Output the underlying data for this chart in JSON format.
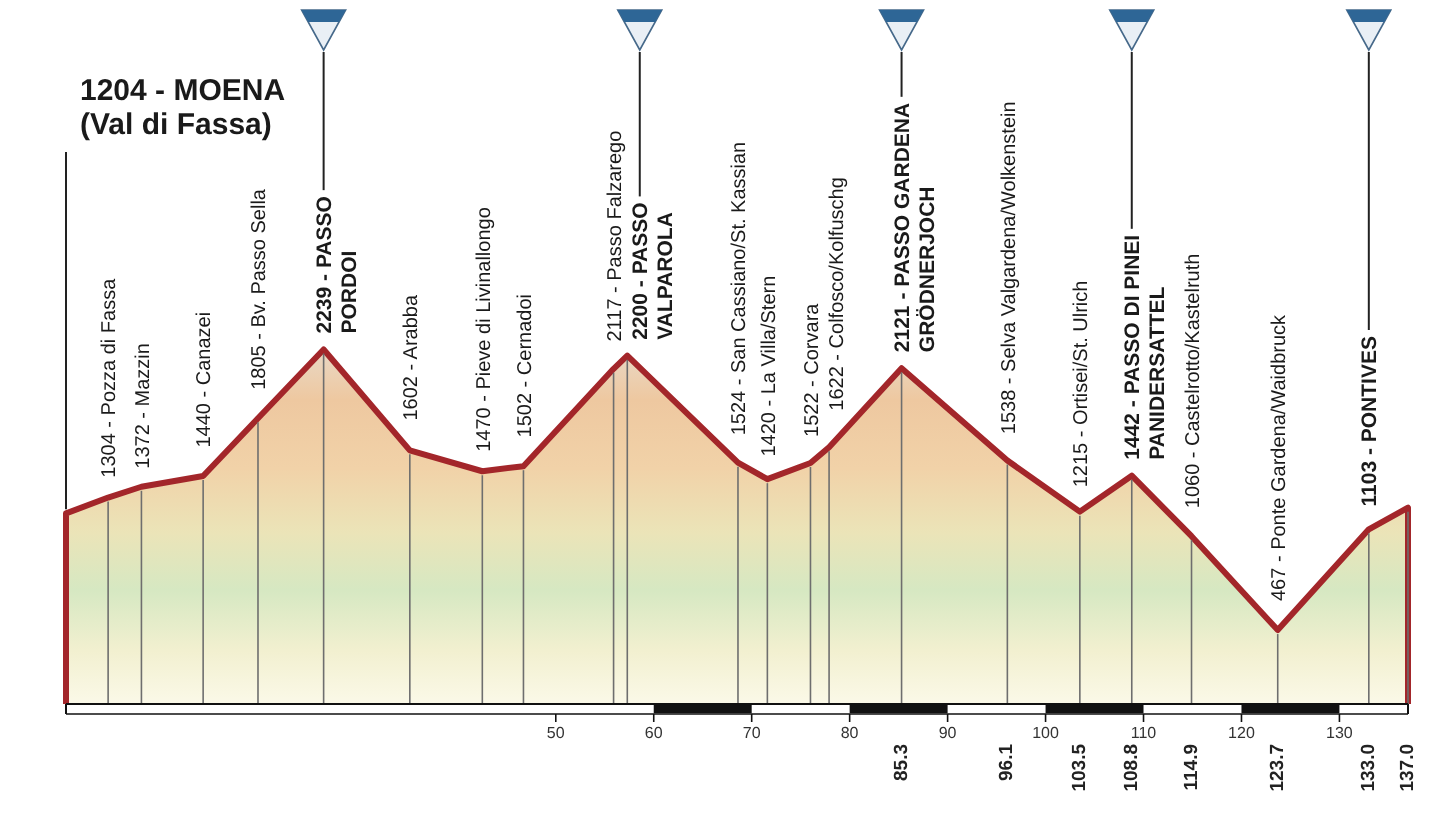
{
  "chart_data": {
    "type": "area",
    "color": "#a3262a",
    "x": [
      0,
      4.3,
      7.7,
      14.0,
      19.6,
      26.3,
      35.1,
      42.5,
      46.7,
      55.9,
      57.3,
      68.6,
      71.6,
      76.0,
      77.9,
      85.3,
      96.1,
      103.5,
      108.8,
      114.9,
      123.7,
      133.0,
      137.0
    ],
    "values": [
      1204,
      1304,
      1372,
      1440,
      1805,
      2239,
      1602,
      1470,
      1502,
      2117,
      2200,
      1524,
      1420,
      1522,
      1622,
      2121,
      1538,
      1215,
      1442,
      1060,
      467,
      1103,
      1240
    ],
    "value_labels": [
      "1204 - MOENA\n(Val di Fassa)",
      "1304 - Pozza di Fassa",
      "1372 - Mazzin",
      "1440 - Canazei",
      "1805 - Bv. Passo Sella",
      "2239 - PASSO\nPORDOI",
      "1602 - Arabba",
      "1470 - Pieve di Livinallongo",
      "1502 - Cernadoi",
      "2117 - Passo Falzarego",
      "2200 - PASSO\nVALPAROLA",
      "1524 - San Cassiano/St. Kassian",
      "1420 - La Villa/Stern",
      "1522 - Corvara",
      "1622 - Colfosco/Kolfuschg",
      "2121 - PASSO GARDENA\nGRÖDNERJOCH",
      "1538 - Selva Valgardena/Wolkenstein",
      "1215 - Ortisei/St. Ulrich",
      "1442 - PASSO DI PINEI\nPANIDERSATTEL",
      "1060 - Castelrotto/Kastelruth",
      "467 - Ponte Gardena/Waidbruck",
      "1103 - PONTIVES",
      null
    ],
    "xlim": [
      0,
      137
    ],
    "xticks": [
      50,
      60,
      70,
      80,
      90,
      100,
      110,
      120,
      130
    ],
    "ylim": [
      0,
      2400
    ],
    "tick_labels": "x",
    "ref_lines": [
      {
        "axis": "x",
        "value": 4.3
      },
      {
        "axis": "x",
        "value": 7.7
      },
      {
        "axis": "x",
        "value": 14.0
      },
      {
        "axis": "x",
        "value": 19.6
      },
      {
        "axis": "x",
        "value": 26.3
      },
      {
        "axis": "x",
        "value": 35.1
      },
      {
        "axis": "x",
        "value": 42.5
      },
      {
        "axis": "x",
        "value": 46.7
      },
      {
        "axis": "x",
        "value": 55.9
      },
      {
        "axis": "x",
        "value": 57.3
      },
      {
        "axis": "x",
        "value": 68.6
      },
      {
        "axis": "x",
        "value": 71.6
      },
      {
        "axis": "x",
        "value": 76.0
      },
      {
        "axis": "x",
        "value": 77.9
      },
      {
        "axis": "x",
        "value": 85.3,
        "label": "85.3"
      },
      {
        "axis": "x",
        "value": 96.1,
        "label": "96.1"
      },
      {
        "axis": "x",
        "value": 103.5,
        "label": "103.5"
      },
      {
        "axis": "x",
        "value": 108.8,
        "label": "108.8"
      },
      {
        "axis": "x",
        "value": 114.9,
        "label": "114.9"
      },
      {
        "axis": "x",
        "value": 123.7,
        "label": "123.7"
      },
      {
        "axis": "x",
        "value": 133.0,
        "label": "133.0"
      },
      {
        "axis": "x",
        "value": 137.0,
        "label": "137.0"
      }
    ]
  }
}
